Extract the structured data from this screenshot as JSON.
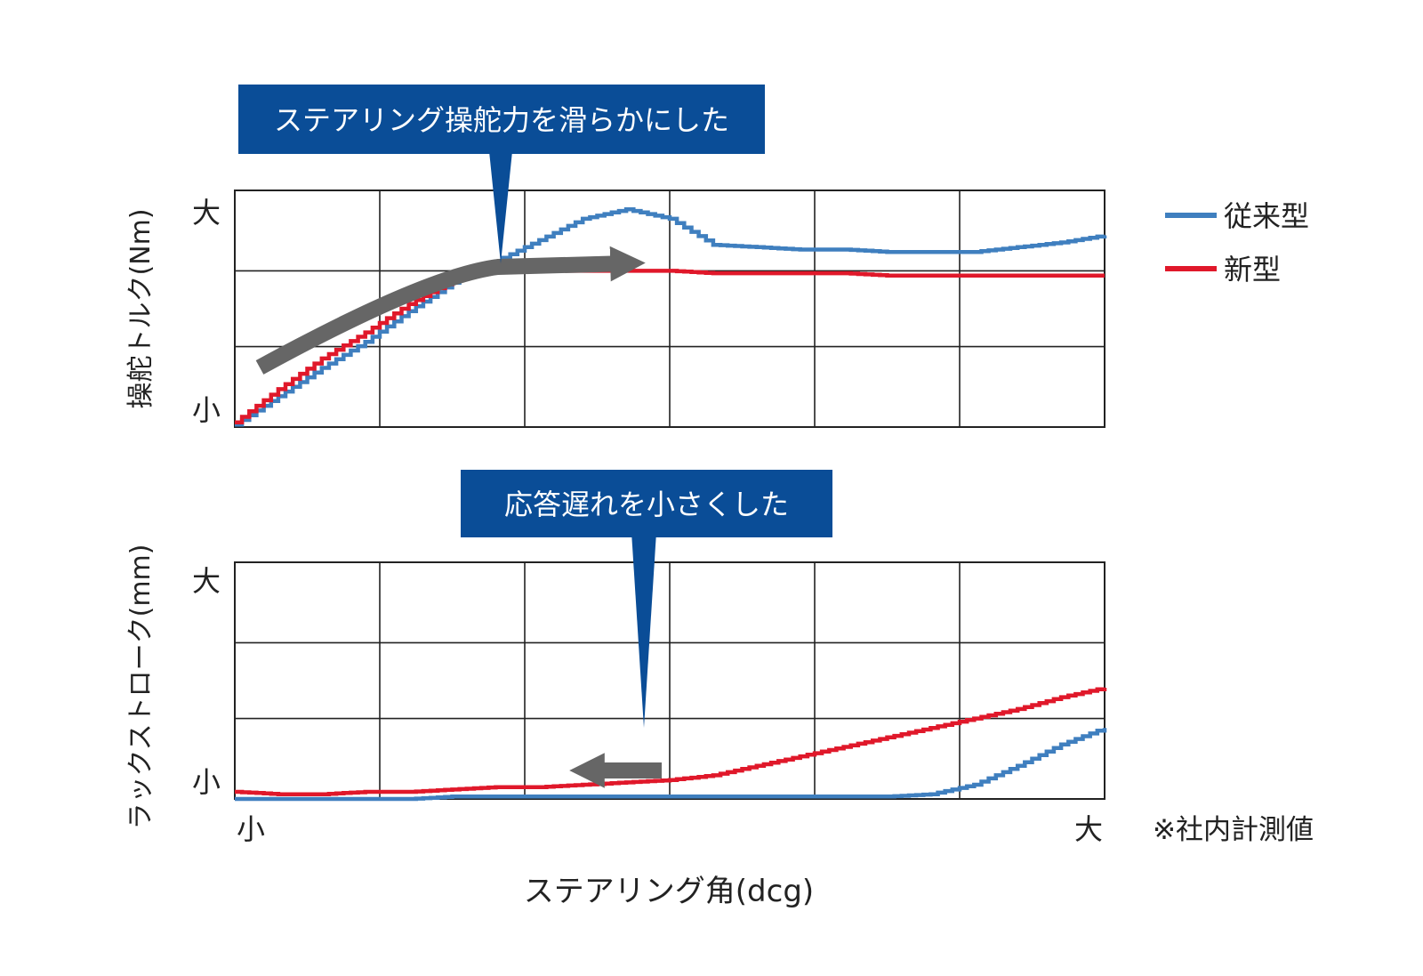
{
  "chart_data": [
    {
      "type": "line",
      "ylabel": "操舵トルク(Nm)",
      "ytick_labels": [
        "小",
        "大"
      ],
      "grid": true,
      "callout": "ステアリング操舵力を滑らかにした",
      "x": [
        0,
        5,
        10,
        15,
        20,
        25,
        30,
        35,
        40,
        45,
        50,
        55,
        60,
        65,
        70,
        75,
        80,
        85,
        90,
        95,
        100
      ],
      "series": [
        {
          "name": "従来型",
          "color": "#3f7fbf",
          "values": [
            1,
            13,
            25,
            36,
            49,
            61,
            70,
            79,
            88,
            92,
            88,
            77,
            76,
            75,
            75,
            74,
            74,
            74,
            76,
            78,
            81
          ]
        },
        {
          "name": "新型",
          "color": "#e0182a",
          "values": [
            2,
            16,
            29,
            40,
            52,
            62,
            66,
            66,
            66,
            66,
            66,
            65,
            65,
            65,
            65,
            64,
            64,
            64,
            64,
            64,
            64
          ]
        }
      ]
    },
    {
      "type": "line",
      "xlabel": "ステアリング角(dcg)",
      "ylabel": "ラックストローク(mm)",
      "xtick_labels": [
        "小",
        "大"
      ],
      "ytick_labels": [
        "小",
        "大"
      ],
      "grid": true,
      "callout": "応答遅れを小さくした",
      "x": [
        0,
        5,
        10,
        15,
        20,
        25,
        30,
        35,
        40,
        45,
        50,
        55,
        60,
        65,
        70,
        75,
        80,
        85,
        90,
        95,
        100
      ],
      "series": [
        {
          "name": "従来型",
          "color": "#3f7fbf",
          "values": [
            0,
            0,
            0,
            0,
            0,
            1,
            1,
            1,
            1,
            1,
            1,
            1,
            1,
            1,
            1,
            1,
            2,
            6,
            14,
            23,
            30
          ]
        },
        {
          "name": "新型",
          "color": "#e0182a",
          "values": [
            3,
            2,
            2,
            3,
            3,
            4,
            5,
            5,
            6,
            7,
            8,
            10,
            14,
            18,
            22,
            26,
            30,
            34,
            38,
            43,
            47
          ]
        }
      ]
    }
  ],
  "legend": {
    "old_label": "従来型",
    "new_label": "新型"
  },
  "note": "※社内計測値"
}
